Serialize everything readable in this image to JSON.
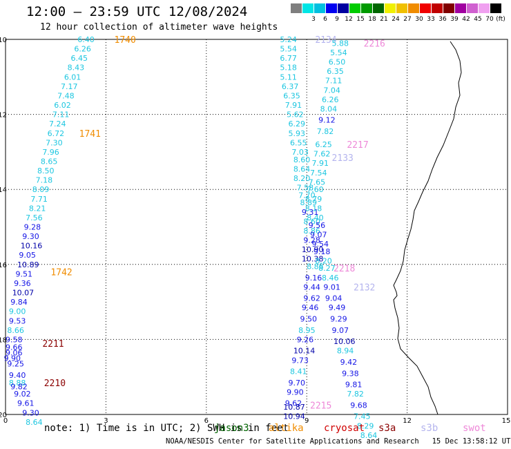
{
  "header": {
    "title": "12:00 – 23:59 UTC 12/08/2024",
    "subtitle": "12 hour collection of altimeter wave heights"
  },
  "colors": {
    "cyan": "#1cc6e0",
    "blue": "#1414e6",
    "navy": "#0000a8",
    "orange": "#f08c00",
    "darkred": "#8b0000",
    "pink": "#ee88d8",
    "lavender": "#b4b4ee",
    "green": "#006400"
  },
  "scale": {
    "unit": "(ft)",
    "cells": [
      {
        "color": "#7f7f7f",
        "label": ""
      },
      {
        "color": "#00e5e5",
        "label": "3"
      },
      {
        "color": "#00c0e0",
        "label": "6"
      },
      {
        "color": "#0000f0",
        "label": "9"
      },
      {
        "color": "#0000a0",
        "label": "12"
      },
      {
        "color": "#00cc00",
        "label": "15"
      },
      {
        "color": "#009a00",
        "label": "18"
      },
      {
        "color": "#006600",
        "label": "21"
      },
      {
        "color": "#f0f000",
        "label": "24"
      },
      {
        "color": "#f0c000",
        "label": "27"
      },
      {
        "color": "#f08c00",
        "label": "30"
      },
      {
        "color": "#f00000",
        "label": "33"
      },
      {
        "color": "#c00000",
        "label": "36"
      },
      {
        "color": "#800000",
        "label": "39"
      },
      {
        "color": "#a000a0",
        "label": "42"
      },
      {
        "color": "#d060d0",
        "label": "45"
      },
      {
        "color": "#f0a0f0",
        "label": "70"
      },
      {
        "color": "#000000",
        "label": ""
      }
    ]
  },
  "footer": {
    "note": "note:  1) Time is in UTC; 2) SWH is in feet",
    "satellites": [
      {
        "name": "jason3",
        "color": "#006400"
      },
      {
        "name": "altika",
        "color": "#f08c00"
      },
      {
        "name": "cryosat",
        "color": "#d00000"
      },
      {
        "name": "s3a",
        "color": "#8b0000"
      },
      {
        "name": "s3b",
        "color": "#b4b4ee"
      },
      {
        "name": "swot",
        "color": "#ee88d8"
      }
    ],
    "credit": "NOAA/NESDIS Center for Satellite Applications and Research   15 Dec 13:58:12 UTC 2024"
  },
  "chart_data": {
    "type": "scatter",
    "title": "12:00 – 23:59 UTC 12/08/2024",
    "xlim": [
      0,
      15
    ],
    "ylim": [
      10,
      20
    ],
    "y_inverted": true,
    "x_ticks": [
      "0",
      "3",
      "6",
      "9",
      "12",
      "15"
    ],
    "y_ticks": [
      "10",
      "12",
      "14",
      "16",
      "18",
      "20"
    ],
    "grid": true,
    "units": "ft",
    "tracks": [
      {
        "label": "1740",
        "label_color": "orange",
        "label_pos": [
          3.25,
          10.0
        ]
      },
      {
        "label": "1741",
        "label_color": "orange",
        "label_pos": [
          2.2,
          12.5
        ]
      },
      {
        "label": "1742",
        "label_color": "orange",
        "label_pos": [
          1.35,
          16.2
        ]
      },
      {
        "label": "2211",
        "label_color": "darkred",
        "label_pos": [
          1.1,
          18.1
        ]
      },
      {
        "label": "2210",
        "label_color": "darkred",
        "label_pos": [
          1.15,
          19.15
        ]
      },
      {
        "label": "2134",
        "label_color": "lavender",
        "label_pos": [
          9.25,
          10.0
        ]
      },
      {
        "label": "2216",
        "label_color": "pink",
        "label_pos": [
          10.7,
          10.1
        ]
      },
      {
        "label": "2217",
        "label_color": "pink",
        "label_pos": [
          10.2,
          12.8
        ]
      },
      {
        "label": "2133",
        "label_color": "lavender",
        "label_pos": [
          9.75,
          13.15
        ]
      },
      {
        "label": "2218",
        "label_color": "pink",
        "label_pos": [
          9.8,
          16.1
        ]
      },
      {
        "label": "2132",
        "label_color": "lavender",
        "label_pos": [
          10.4,
          16.6
        ]
      },
      {
        "label": "2215",
        "label_color": "pink",
        "label_pos": [
          9.1,
          19.75
        ]
      }
    ],
    "points": [
      {
        "x": 2.15,
        "y": 10.0,
        "v": "6.40",
        "c": "cyan"
      },
      {
        "x": 2.05,
        "y": 10.25,
        "v": "6.26",
        "c": "cyan"
      },
      {
        "x": 1.95,
        "y": 10.5,
        "v": "6.45",
        "c": "cyan"
      },
      {
        "x": 1.85,
        "y": 10.75,
        "v": "8.43",
        "c": "cyan"
      },
      {
        "x": 1.75,
        "y": 11.0,
        "v": "6.01",
        "c": "cyan"
      },
      {
        "x": 1.65,
        "y": 11.25,
        "v": "7.17",
        "c": "cyan"
      },
      {
        "x": 1.55,
        "y": 11.5,
        "v": "7.48",
        "c": "cyan"
      },
      {
        "x": 1.45,
        "y": 11.75,
        "v": "6.02",
        "c": "cyan"
      },
      {
        "x": 1.4,
        "y": 12.0,
        "v": "7.11",
        "c": "cyan"
      },
      {
        "x": 1.3,
        "y": 12.25,
        "v": "7.24",
        "c": "cyan"
      },
      {
        "x": 1.25,
        "y": 12.5,
        "v": "6.72",
        "c": "cyan"
      },
      {
        "x": 1.2,
        "y": 12.75,
        "v": "7.30",
        "c": "cyan"
      },
      {
        "x": 1.1,
        "y": 13.0,
        "v": "7.96",
        "c": "cyan"
      },
      {
        "x": 1.05,
        "y": 13.25,
        "v": "8.65",
        "c": "cyan"
      },
      {
        "x": 0.95,
        "y": 13.5,
        "v": "8.50",
        "c": "cyan"
      },
      {
        "x": 0.9,
        "y": 13.75,
        "v": "7.18",
        "c": "cyan"
      },
      {
        "x": 0.8,
        "y": 14.0,
        "v": "8.09",
        "c": "cyan"
      },
      {
        "x": 0.75,
        "y": 14.25,
        "v": "7.71",
        "c": "cyan"
      },
      {
        "x": 0.7,
        "y": 14.5,
        "v": "8.21",
        "c": "cyan"
      },
      {
        "x": 0.6,
        "y": 14.75,
        "v": "7.56",
        "c": "cyan"
      },
      {
        "x": 0.55,
        "y": 15.0,
        "v": "9.28",
        "c": "blue"
      },
      {
        "x": 0.5,
        "y": 15.25,
        "v": "9.30",
        "c": "blue"
      },
      {
        "x": 0.45,
        "y": 15.5,
        "v": "10.16",
        "c": "navy"
      },
      {
        "x": 0.4,
        "y": 15.75,
        "v": "9.05",
        "c": "blue"
      },
      {
        "x": 0.35,
        "y": 16.0,
        "v": "10.89",
        "c": "navy"
      },
      {
        "x": 0.3,
        "y": 16.25,
        "v": "9.51",
        "c": "blue"
      },
      {
        "x": 0.25,
        "y": 16.5,
        "v": "9.36",
        "c": "blue"
      },
      {
        "x": 0.2,
        "y": 16.75,
        "v": "10.07",
        "c": "navy"
      },
      {
        "x": 0.15,
        "y": 17.0,
        "v": "9.84",
        "c": "blue"
      },
      {
        "x": 0.1,
        "y": 17.25,
        "v": "9.00",
        "c": "cyan"
      },
      {
        "x": 0.1,
        "y": 17.5,
        "v": "9.53",
        "c": "blue"
      },
      {
        "x": 0.05,
        "y": 17.75,
        "v": "8.66",
        "c": "cyan"
      },
      {
        "x": 0.0,
        "y": 18.0,
        "v": "9.58",
        "c": "blue"
      },
      {
        "x": 0.0,
        "y": 18.2,
        "v": "9.66",
        "c": "blue"
      },
      {
        "x": 0.0,
        "y": 18.35,
        "v": "9.06",
        "c": "blue"
      },
      {
        "x": -0.05,
        "y": 18.5,
        "v": "9.90",
        "c": "blue"
      },
      {
        "x": 0.05,
        "y": 18.65,
        "v": "9.25",
        "c": "blue"
      },
      {
        "x": 0.1,
        "y": 18.95,
        "v": "9.40",
        "c": "blue"
      },
      {
        "x": 0.1,
        "y": 19.15,
        "v": "8.88",
        "c": "cyan"
      },
      {
        "x": 0.15,
        "y": 19.25,
        "v": "9.82",
        "c": "blue"
      },
      {
        "x": 0.25,
        "y": 19.45,
        "v": "9.02",
        "c": "blue"
      },
      {
        "x": 0.35,
        "y": 19.7,
        "v": "9.61",
        "c": "blue"
      },
      {
        "x": 0.5,
        "y": 19.95,
        "v": "9.30",
        "c": "blue"
      },
      {
        "x": 0.6,
        "y": 20.2,
        "v": "8.64",
        "c": "cyan"
      },
      {
        "x": 8.2,
        "y": 10.0,
        "v": "5.24",
        "c": "cyan"
      },
      {
        "x": 8.2,
        "y": 10.25,
        "v": "5.54",
        "c": "cyan"
      },
      {
        "x": 8.2,
        "y": 10.5,
        "v": "6.77",
        "c": "cyan"
      },
      {
        "x": 8.2,
        "y": 10.75,
        "v": "5.18",
        "c": "cyan"
      },
      {
        "x": 8.2,
        "y": 11.0,
        "v": "5.11",
        "c": "cyan"
      },
      {
        "x": 8.25,
        "y": 11.25,
        "v": "6.37",
        "c": "cyan"
      },
      {
        "x": 8.3,
        "y": 11.5,
        "v": "6.35",
        "c": "cyan"
      },
      {
        "x": 8.35,
        "y": 11.75,
        "v": "7.91",
        "c": "cyan"
      },
      {
        "x": 8.4,
        "y": 12.0,
        "v": "5.62",
        "c": "cyan"
      },
      {
        "x": 8.45,
        "y": 12.25,
        "v": "6.29",
        "c": "cyan"
      },
      {
        "x": 8.45,
        "y": 12.5,
        "v": "5.93",
        "c": "cyan"
      },
      {
        "x": 8.5,
        "y": 12.75,
        "v": "6.55",
        "c": "cyan"
      },
      {
        "x": 8.55,
        "y": 13.0,
        "v": "7.03",
        "c": "cyan"
      },
      {
        "x": 8.6,
        "y": 13.2,
        "v": "8.60",
        "c": "cyan"
      },
      {
        "x": 8.6,
        "y": 13.45,
        "v": "8.64",
        "c": "cyan"
      },
      {
        "x": 8.6,
        "y": 13.7,
        "v": "8.20",
        "c": "cyan"
      },
      {
        "x": 8.7,
        "y": 13.95,
        "v": "7.58",
        "c": "cyan"
      },
      {
        "x": 8.75,
        "y": 14.15,
        "v": "7.70",
        "c": "cyan"
      },
      {
        "x": 8.8,
        "y": 14.35,
        "v": "8.89",
        "c": "cyan"
      },
      {
        "x": 8.85,
        "y": 14.6,
        "v": "9.31",
        "c": "blue"
      },
      {
        "x": 8.9,
        "y": 14.85,
        "v": "8.60",
        "c": "cyan"
      },
      {
        "x": 8.9,
        "y": 15.1,
        "v": "8.86",
        "c": "cyan"
      },
      {
        "x": 8.9,
        "y": 15.35,
        "v": "9.28",
        "c": "blue"
      },
      {
        "x": 8.85,
        "y": 15.6,
        "v": "10.90",
        "c": "navy"
      },
      {
        "x": 8.85,
        "y": 15.85,
        "v": "10.38",
        "c": "navy"
      },
      {
        "x": 9.0,
        "y": 16.05,
        "v": "8.88",
        "c": "cyan"
      },
      {
        "x": 8.95,
        "y": 16.35,
        "v": "9.16",
        "c": "blue"
      },
      {
        "x": 8.9,
        "y": 16.6,
        "v": "9.44",
        "c": "blue"
      },
      {
        "x": 8.9,
        "y": 16.9,
        "v": "9.62",
        "c": "blue"
      },
      {
        "x": 8.85,
        "y": 17.15,
        "v": "9.46",
        "c": "blue"
      },
      {
        "x": 8.8,
        "y": 17.45,
        "v": "9.50",
        "c": "blue"
      },
      {
        "x": 8.75,
        "y": 17.75,
        "v": "8.95",
        "c": "cyan"
      },
      {
        "x": 8.7,
        "y": 18.0,
        "v": "9.26",
        "c": "blue"
      },
      {
        "x": 8.6,
        "y": 18.3,
        "v": "10.14",
        "c": "navy"
      },
      {
        "x": 8.55,
        "y": 18.55,
        "v": "9.73",
        "c": "blue"
      },
      {
        "x": 8.5,
        "y": 18.85,
        "v": "8.41",
        "c": "cyan"
      },
      {
        "x": 8.45,
        "y": 19.15,
        "v": "9.70",
        "c": "blue"
      },
      {
        "x": 8.4,
        "y": 19.4,
        "v": "9.90",
        "c": "blue"
      },
      {
        "x": 8.35,
        "y": 19.7,
        "v": "9.62",
        "c": "blue"
      },
      {
        "x": 8.3,
        "y": 19.8,
        "v": "10.87",
        "c": "navy"
      },
      {
        "x": 8.3,
        "y": 20.05,
        "v": "10.94",
        "c": "navy"
      },
      {
        "x": 9.75,
        "y": 10.1,
        "v": "5.88",
        "c": "cyan"
      },
      {
        "x": 9.7,
        "y": 10.35,
        "v": "5.54",
        "c": "cyan"
      },
      {
        "x": 9.65,
        "y": 10.6,
        "v": "6.50",
        "c": "cyan"
      },
      {
        "x": 9.6,
        "y": 10.85,
        "v": "6.35",
        "c": "cyan"
      },
      {
        "x": 9.55,
        "y": 11.1,
        "v": "7.11",
        "c": "cyan"
      },
      {
        "x": 9.5,
        "y": 11.35,
        "v": "7.04",
        "c": "cyan"
      },
      {
        "x": 9.45,
        "y": 11.6,
        "v": "6.26",
        "c": "cyan"
      },
      {
        "x": 9.4,
        "y": 11.85,
        "v": "8.04",
        "c": "cyan"
      },
      {
        "x": 9.35,
        "y": 12.15,
        "v": "9.12",
        "c": "blue"
      },
      {
        "x": 9.3,
        "y": 12.45,
        "v": "7.82",
        "c": "cyan"
      },
      {
        "x": 9.25,
        "y": 12.8,
        "v": "6.25",
        "c": "cyan"
      },
      {
        "x": 9.2,
        "y": 13.05,
        "v": "7.62",
        "c": "cyan"
      },
      {
        "x": 9.15,
        "y": 13.3,
        "v": "7.91",
        "c": "cyan"
      },
      {
        "x": 9.1,
        "y": 13.55,
        "v": "7.54",
        "c": "cyan"
      },
      {
        "x": 9.05,
        "y": 13.8,
        "v": "7.65",
        "c": "cyan"
      },
      {
        "x": 9.0,
        "y": 14.0,
        "v": "7.60",
        "c": "cyan"
      },
      {
        "x": 8.95,
        "y": 14.25,
        "v": "8.79",
        "c": "cyan"
      },
      {
        "x": 8.95,
        "y": 14.5,
        "v": "8.18",
        "c": "cyan"
      },
      {
        "x": 9.0,
        "y": 14.75,
        "v": "8.40",
        "c": "cyan"
      },
      {
        "x": 9.05,
        "y": 14.95,
        "v": "9.56",
        "c": "blue"
      },
      {
        "x": 9.1,
        "y": 15.2,
        "v": "9.07",
        "c": "blue"
      },
      {
        "x": 9.15,
        "y": 15.45,
        "v": "9.54",
        "c": "blue"
      },
      {
        "x": 9.2,
        "y": 15.65,
        "v": "9.18",
        "c": "blue"
      },
      {
        "x": 9.25,
        "y": 15.9,
        "v": "8.20",
        "c": "cyan"
      },
      {
        "x": 9.35,
        "y": 16.1,
        "v": "8.27",
        "c": "cyan"
      },
      {
        "x": 9.45,
        "y": 16.35,
        "v": "8.46",
        "c": "cyan"
      },
      {
        "x": 9.5,
        "y": 16.6,
        "v": "9.01",
        "c": "blue"
      },
      {
        "x": 9.55,
        "y": 16.9,
        "v": "9.04",
        "c": "blue"
      },
      {
        "x": 9.65,
        "y": 17.15,
        "v": "9.49",
        "c": "blue"
      },
      {
        "x": 9.7,
        "y": 17.45,
        "v": "9.29",
        "c": "blue"
      },
      {
        "x": 9.75,
        "y": 17.75,
        "v": "9.07",
        "c": "blue"
      },
      {
        "x": 9.8,
        "y": 18.05,
        "v": "10.06",
        "c": "navy"
      },
      {
        "x": 9.9,
        "y": 18.3,
        "v": "8.94",
        "c": "cyan"
      },
      {
        "x": 10.0,
        "y": 18.6,
        "v": "9.42",
        "c": "blue"
      },
      {
        "x": 10.05,
        "y": 18.9,
        "v": "9.38",
        "c": "blue"
      },
      {
        "x": 10.15,
        "y": 19.2,
        "v": "9.81",
        "c": "blue"
      },
      {
        "x": 10.2,
        "y": 19.45,
        "v": "7.82",
        "c": "cyan"
      },
      {
        "x": 10.3,
        "y": 19.75,
        "v": "9.68",
        "c": "blue"
      },
      {
        "x": 10.4,
        "y": 20.05,
        "v": "7.45",
        "c": "cyan"
      },
      {
        "x": 10.5,
        "y": 20.3,
        "v": "8.29",
        "c": "cyan"
      },
      {
        "x": 10.6,
        "y": 20.55,
        "v": "8.64",
        "c": "cyan"
      }
    ]
  }
}
